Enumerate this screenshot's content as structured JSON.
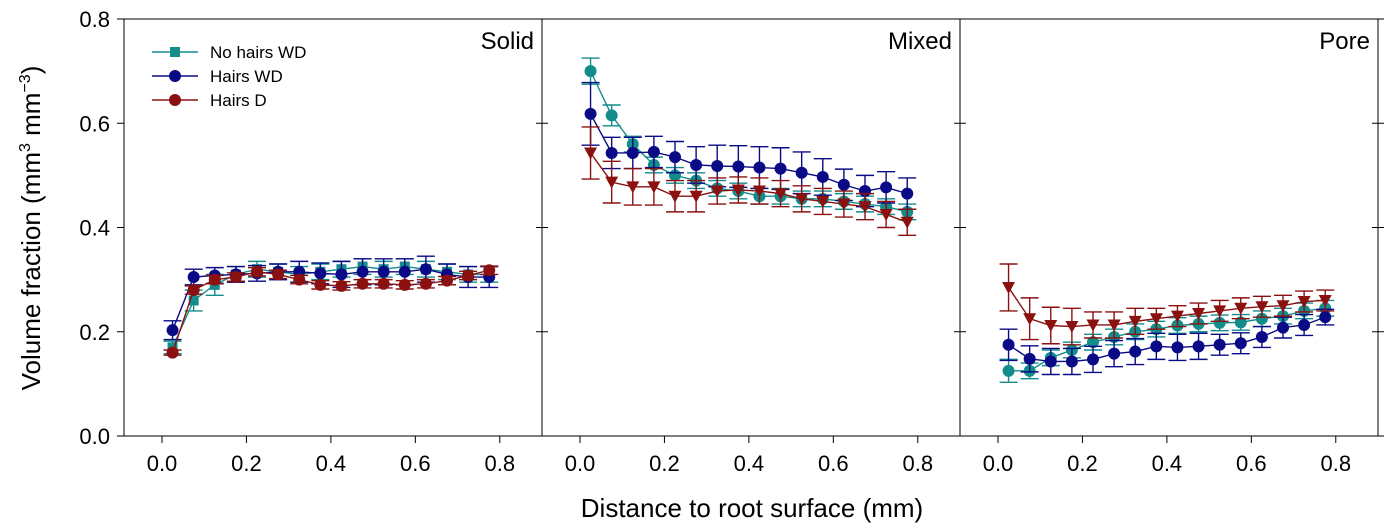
{
  "chart_data": {
    "type": "scatter",
    "ylabel_main": "Volume fraction (mm",
    "ylabel_exp1": "3",
    "ylabel_mid": " mm",
    "ylabel_exp2": "−3",
    "ylabel_end": ")",
    "xlabel": "Distance to root surface (mm)",
    "ylim": [
      0,
      0.8
    ],
    "xlim": [
      -0.09,
      0.9
    ],
    "x_ticks": [
      0.0,
      0.2,
      0.4,
      0.6,
      0.8
    ],
    "x_tick_labels": [
      "0.0",
      "0.2",
      "0.4",
      "0.6",
      "0.8"
    ],
    "y_ticks": [
      0.0,
      0.2,
      0.4,
      0.6,
      0.8
    ],
    "y_tick_labels": [
      "0.0",
      "0.2",
      "0.4",
      "0.6",
      "0.8"
    ],
    "grid": false,
    "legend": {
      "placement": "top-left",
      "entries": [
        {
          "name": "No hairs WD",
          "color": "#138c8c",
          "marker": "square"
        },
        {
          "name": "Hairs WD",
          "color": "#0a0a86",
          "marker": "circle"
        },
        {
          "name": "Hairs D",
          "color": "#8b1010",
          "marker": "circle"
        }
      ]
    },
    "panels": [
      {
        "title": "Solid",
        "series": [
          {
            "name": "No hairs WD",
            "color": "#138c8c",
            "marker": "square",
            "x": [
              0.025,
              0.075,
              0.125,
              0.175,
              0.225,
              0.275,
              0.325,
              0.375,
              0.425,
              0.475,
              0.525,
              0.575,
              0.625,
              0.675,
              0.725,
              0.775
            ],
            "y": [
              0.17,
              0.26,
              0.29,
              0.31,
              0.32,
              0.315,
              0.31,
              0.315,
              0.32,
              0.325,
              0.32,
              0.325,
              0.32,
              0.315,
              0.31,
              0.31
            ],
            "err": [
              0.012,
              0.02,
              0.02,
              0.015,
              0.015,
              0.015,
              0.015,
              0.015,
              0.015,
              0.015,
              0.015,
              0.015,
              0.015,
              0.015,
              0.015,
              0.015
            ]
          },
          {
            "name": "Hairs WD",
            "color": "#0a0a86",
            "marker": "circle",
            "x": [
              0.025,
              0.075,
              0.125,
              0.175,
              0.225,
              0.275,
              0.325,
              0.375,
              0.425,
              0.475,
              0.525,
              0.575,
              0.625,
              0.675,
              0.725,
              0.775
            ],
            "y": [
              0.203,
              0.305,
              0.308,
              0.31,
              0.312,
              0.315,
              0.315,
              0.312,
              0.31,
              0.315,
              0.315,
              0.315,
              0.32,
              0.31,
              0.305,
              0.305
            ],
            "err": [
              0.018,
              0.015,
              0.015,
              0.015,
              0.015,
              0.015,
              0.02,
              0.02,
              0.025,
              0.025,
              0.025,
              0.025,
              0.025,
              0.02,
              0.02,
              0.02
            ]
          },
          {
            "name": "Hairs D",
            "color": "#8b1010",
            "marker": "circle",
            "x": [
              0.025,
              0.075,
              0.125,
              0.175,
              0.225,
              0.275,
              0.325,
              0.375,
              0.425,
              0.475,
              0.525,
              0.575,
              0.625,
              0.675,
              0.725,
              0.775
            ],
            "y": [
              0.16,
              0.28,
              0.3,
              0.305,
              0.315,
              0.31,
              0.3,
              0.29,
              0.288,
              0.292,
              0.292,
              0.29,
              0.292,
              0.298,
              0.308,
              0.318
            ],
            "err": [
              0.005,
              0.008,
              0.008,
              0.008,
              0.008,
              0.008,
              0.008,
              0.008,
              0.008,
              0.008,
              0.008,
              0.008,
              0.008,
              0.008,
              0.008,
              0.008
            ]
          }
        ]
      },
      {
        "title": "Mixed",
        "series": [
          {
            "name": "No hairs WD",
            "color": "#138c8c",
            "marker": "circle",
            "x": [
              0.025,
              0.075,
              0.125,
              0.175,
              0.225,
              0.275,
              0.325,
              0.375,
              0.425,
              0.475,
              0.525,
              0.575,
              0.625,
              0.675,
              0.725,
              0.775
            ],
            "y": [
              0.7,
              0.615,
              0.56,
              0.52,
              0.5,
              0.49,
              0.475,
              0.47,
              0.46,
              0.46,
              0.455,
              0.455,
              0.45,
              0.445,
              0.44,
              0.43
            ],
            "err": [
              0.025,
              0.02,
              0.015,
              0.015,
              0.015,
              0.015,
              0.015,
              0.015,
              0.015,
              0.015,
              0.015,
              0.015,
              0.015,
              0.015,
              0.015,
              0.015
            ]
          },
          {
            "name": "Hairs WD",
            "color": "#0a0a86",
            "marker": "circle",
            "x": [
              0.025,
              0.075,
              0.125,
              0.175,
              0.225,
              0.275,
              0.325,
              0.375,
              0.425,
              0.475,
              0.525,
              0.575,
              0.625,
              0.675,
              0.725,
              0.775
            ],
            "y": [
              0.618,
              0.543,
              0.543,
              0.545,
              0.535,
              0.52,
              0.518,
              0.517,
              0.515,
              0.513,
              0.505,
              0.497,
              0.482,
              0.47,
              0.477,
              0.465
            ],
            "err": [
              0.06,
              0.03,
              0.03,
              0.03,
              0.03,
              0.035,
              0.04,
              0.04,
              0.04,
              0.04,
              0.04,
              0.035,
              0.03,
              0.03,
              0.03,
              0.03
            ]
          },
          {
            "name": "Hairs D",
            "color": "#8b1010",
            "marker": "triangle-down",
            "x": [
              0.025,
              0.075,
              0.125,
              0.175,
              0.225,
              0.275,
              0.325,
              0.375,
              0.425,
              0.475,
              0.525,
              0.575,
              0.625,
              0.675,
              0.725,
              0.775
            ],
            "y": [
              0.543,
              0.487,
              0.478,
              0.478,
              0.46,
              0.46,
              0.47,
              0.472,
              0.47,
              0.465,
              0.455,
              0.45,
              0.445,
              0.44,
              0.425,
              0.41
            ],
            "err": [
              0.05,
              0.04,
              0.035,
              0.035,
              0.03,
              0.03,
              0.025,
              0.025,
              0.025,
              0.025,
              0.025,
              0.025,
              0.025,
              0.025,
              0.025,
              0.025
            ]
          }
        ]
      },
      {
        "title": "Pore",
        "series": [
          {
            "name": "No hairs WD",
            "color": "#138c8c",
            "marker": "circle",
            "x": [
              0.025,
              0.075,
              0.125,
              0.175,
              0.225,
              0.275,
              0.325,
              0.375,
              0.425,
              0.475,
              0.525,
              0.575,
              0.625,
              0.675,
              0.725,
              0.775
            ],
            "y": [
              0.125,
              0.125,
              0.15,
              0.165,
              0.18,
              0.19,
              0.2,
              0.205,
              0.212,
              0.215,
              0.217,
              0.218,
              0.225,
              0.23,
              0.24,
              0.245
            ],
            "err": [
              0.022,
              0.015,
              0.015,
              0.015,
              0.015,
              0.015,
              0.015,
              0.015,
              0.015,
              0.015,
              0.015,
              0.015,
              0.015,
              0.015,
              0.015,
              0.015
            ]
          },
          {
            "name": "Hairs WD",
            "color": "#0a0a86",
            "marker": "circle",
            "x": [
              0.025,
              0.075,
              0.125,
              0.175,
              0.225,
              0.275,
              0.325,
              0.375,
              0.425,
              0.475,
              0.525,
              0.575,
              0.625,
              0.675,
              0.725,
              0.775
            ],
            "y": [
              0.175,
              0.148,
              0.143,
              0.143,
              0.147,
              0.158,
              0.162,
              0.172,
              0.17,
              0.172,
              0.175,
              0.178,
              0.19,
              0.208,
              0.213,
              0.228
            ],
            "err": [
              0.03,
              0.025,
              0.025,
              0.025,
              0.025,
              0.025,
              0.025,
              0.025,
              0.025,
              0.025,
              0.02,
              0.02,
              0.02,
              0.02,
              0.02,
              0.015
            ]
          },
          {
            "name": "Hairs D",
            "color": "#8b1010",
            "marker": "triangle-down",
            "x": [
              0.025,
              0.075,
              0.125,
              0.175,
              0.225,
              0.275,
              0.325,
              0.375,
              0.425,
              0.475,
              0.525,
              0.575,
              0.625,
              0.675,
              0.725,
              0.775
            ],
            "y": [
              0.285,
              0.225,
              0.212,
              0.21,
              0.213,
              0.213,
              0.22,
              0.225,
              0.23,
              0.235,
              0.24,
              0.245,
              0.248,
              0.25,
              0.258,
              0.26
            ],
            "err": [
              0.045,
              0.04,
              0.035,
              0.035,
              0.025,
              0.025,
              0.025,
              0.02,
              0.02,
              0.02,
              0.02,
              0.02,
              0.02,
              0.02,
              0.02,
              0.02
            ]
          }
        ]
      }
    ]
  }
}
